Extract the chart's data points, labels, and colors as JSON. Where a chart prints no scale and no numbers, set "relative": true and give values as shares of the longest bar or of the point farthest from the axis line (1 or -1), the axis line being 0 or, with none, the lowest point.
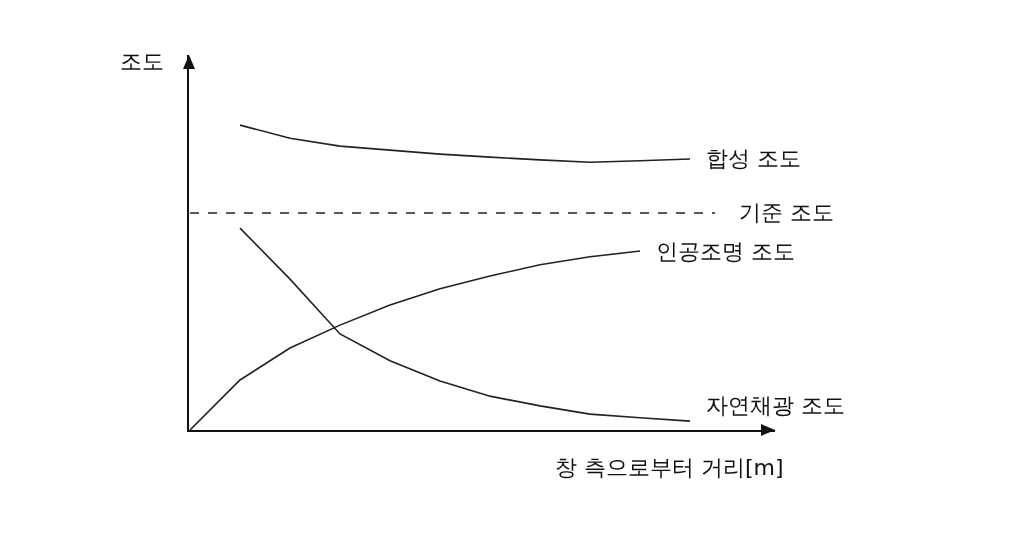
{
  "chart_data": {
    "type": "line",
    "relative": true,
    "xlabel": "창 측으로부터 거리[m]",
    "ylabel": "조도",
    "categories": [
      null,
      null,
      null,
      null,
      null,
      null,
      null,
      null,
      null,
      null,
      null
    ],
    "series": [
      {
        "name": "합성 조도",
        "color": "#222222",
        "values": [
          null,
          1,
          0.957,
          0.931,
          0.918,
          0.905,
          0.895,
          0.886,
          0.878,
          0.883,
          0.889
        ]
      },
      {
        "name": "인공조명 조도",
        "color": "#222222",
        "values": [
          0,
          0.164,
          0.269,
          0.344,
          0.41,
          0.463,
          0.505,
          0.542,
          0.568,
          0.587,
          null
        ]
      },
      {
        "name": "자연채광 조도",
        "color": "#222222",
        "values": [
          null,
          0.662,
          0.495,
          0.315,
          0.227,
          0.161,
          0.111,
          0.079,
          0.052,
          0.04,
          0.029
        ]
      }
    ],
    "ref_lines": [
      {
        "axis": "y",
        "value": 0.712,
        "label": "기준 조도",
        "color": "#222222",
        "line_style": "dashed"
      }
    ],
    "grid": false,
    "legend": false,
    "marker": "none",
    "line_style": "solid"
  }
}
